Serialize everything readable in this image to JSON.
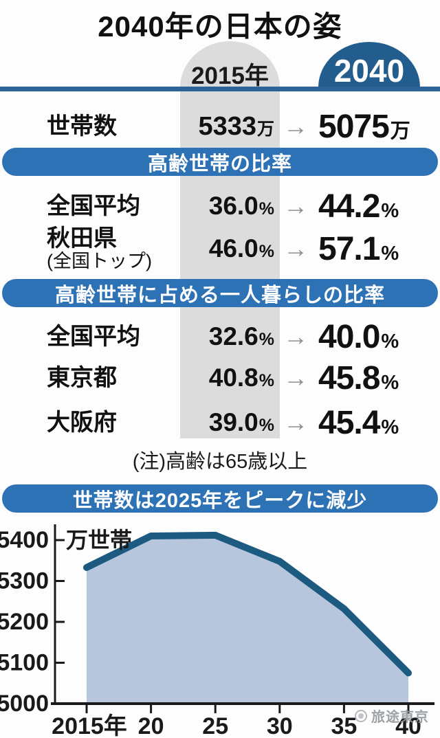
{
  "title": "2040年の日本の姿",
  "columns": {
    "from": "2015年",
    "to": "2040"
  },
  "icons": {
    "arrow": "→"
  },
  "rows": [
    {
      "label": "世帯数",
      "sublabel": "",
      "from": "5333",
      "from_unit": "万",
      "to": "5075",
      "to_unit": "万"
    },
    {
      "label": "全国平均",
      "sublabel": "",
      "from": "36.0",
      "from_unit": "%",
      "to": "44.2",
      "to_unit": "%"
    },
    {
      "label": "秋田県",
      "sublabel": "(全国トップ)",
      "from": "46.0",
      "from_unit": "%",
      "to": "57.1",
      "to_unit": "%"
    },
    {
      "label": "全国平均",
      "sublabel": "",
      "from": "32.6",
      "from_unit": "%",
      "to": "40.0",
      "to_unit": "%"
    },
    {
      "label": "東京都",
      "sublabel": "",
      "from": "40.8",
      "from_unit": "%",
      "to": "45.8",
      "to_unit": "%"
    },
    {
      "label": "大阪府",
      "sublabel": "",
      "from": "39.0",
      "from_unit": "%",
      "to": "45.4",
      "to_unit": "%"
    }
  ],
  "section_headings": [
    "高齢世帯の比率",
    "高齢世帯に占める一人暮らしの比率"
  ],
  "note": "(注)高齢は65歳以上",
  "chart_data": {
    "type": "area",
    "title": "世帯数は2025年をピークに減少",
    "x": [
      2015,
      2020,
      2025,
      2030,
      2035,
      2040
    ],
    "values": [
      5333,
      5410,
      5412,
      5348,
      5232,
      5075
    ],
    "xtick_labels": [
      "2015年",
      "20",
      "25",
      "30",
      "35",
      "40"
    ],
    "yticks": [
      5000,
      5100,
      5200,
      5300,
      5400
    ],
    "ylabel": "万世帯",
    "xlim": [
      2015,
      2040
    ],
    "ylim": [
      5000,
      5440
    ],
    "grid": false,
    "legend": false,
    "line_color": "#1d5a7f",
    "fill_color": "#b7c5dd"
  },
  "watermark": {
    "text": "旅途東京"
  },
  "colors": {
    "band_blue": "#2e72b6",
    "rule_blue": "#2d6399",
    "badge_navy": "#235d8e",
    "column_gray": "#dcdcdc",
    "chart_line": "#1d5a7f",
    "chart_fill": "#b7c5dd",
    "arrow_gray": "#8f8f8f",
    "text": "#111111"
  }
}
